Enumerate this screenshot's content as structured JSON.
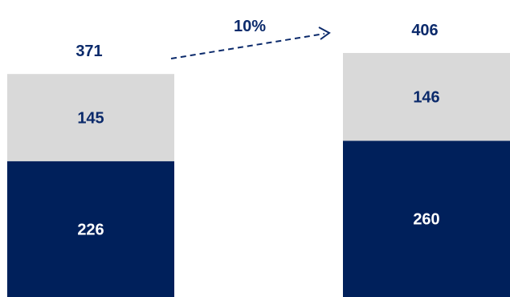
{
  "chart_data": {
    "type": "bar",
    "stacked": true,
    "categories": [
      "",
      ""
    ],
    "series": [
      {
        "values": [
          226,
          260
        ],
        "color": "#00205B"
      },
      {
        "values": [
          145,
          146
        ],
        "color": "#D9D9D9"
      }
    ],
    "totals": [
      371,
      406
    ],
    "growth_label": "10%",
    "label_colors": {
      "on_dark": "#FFFFFF",
      "on_light": "#0B2A6B",
      "totals": "#0B2A6B",
      "arrow": "#0B2A6B"
    },
    "title": "",
    "xlabel": "",
    "ylabel": "",
    "ylim": [
      0,
      406
    ],
    "grid": false,
    "legend": "none"
  }
}
